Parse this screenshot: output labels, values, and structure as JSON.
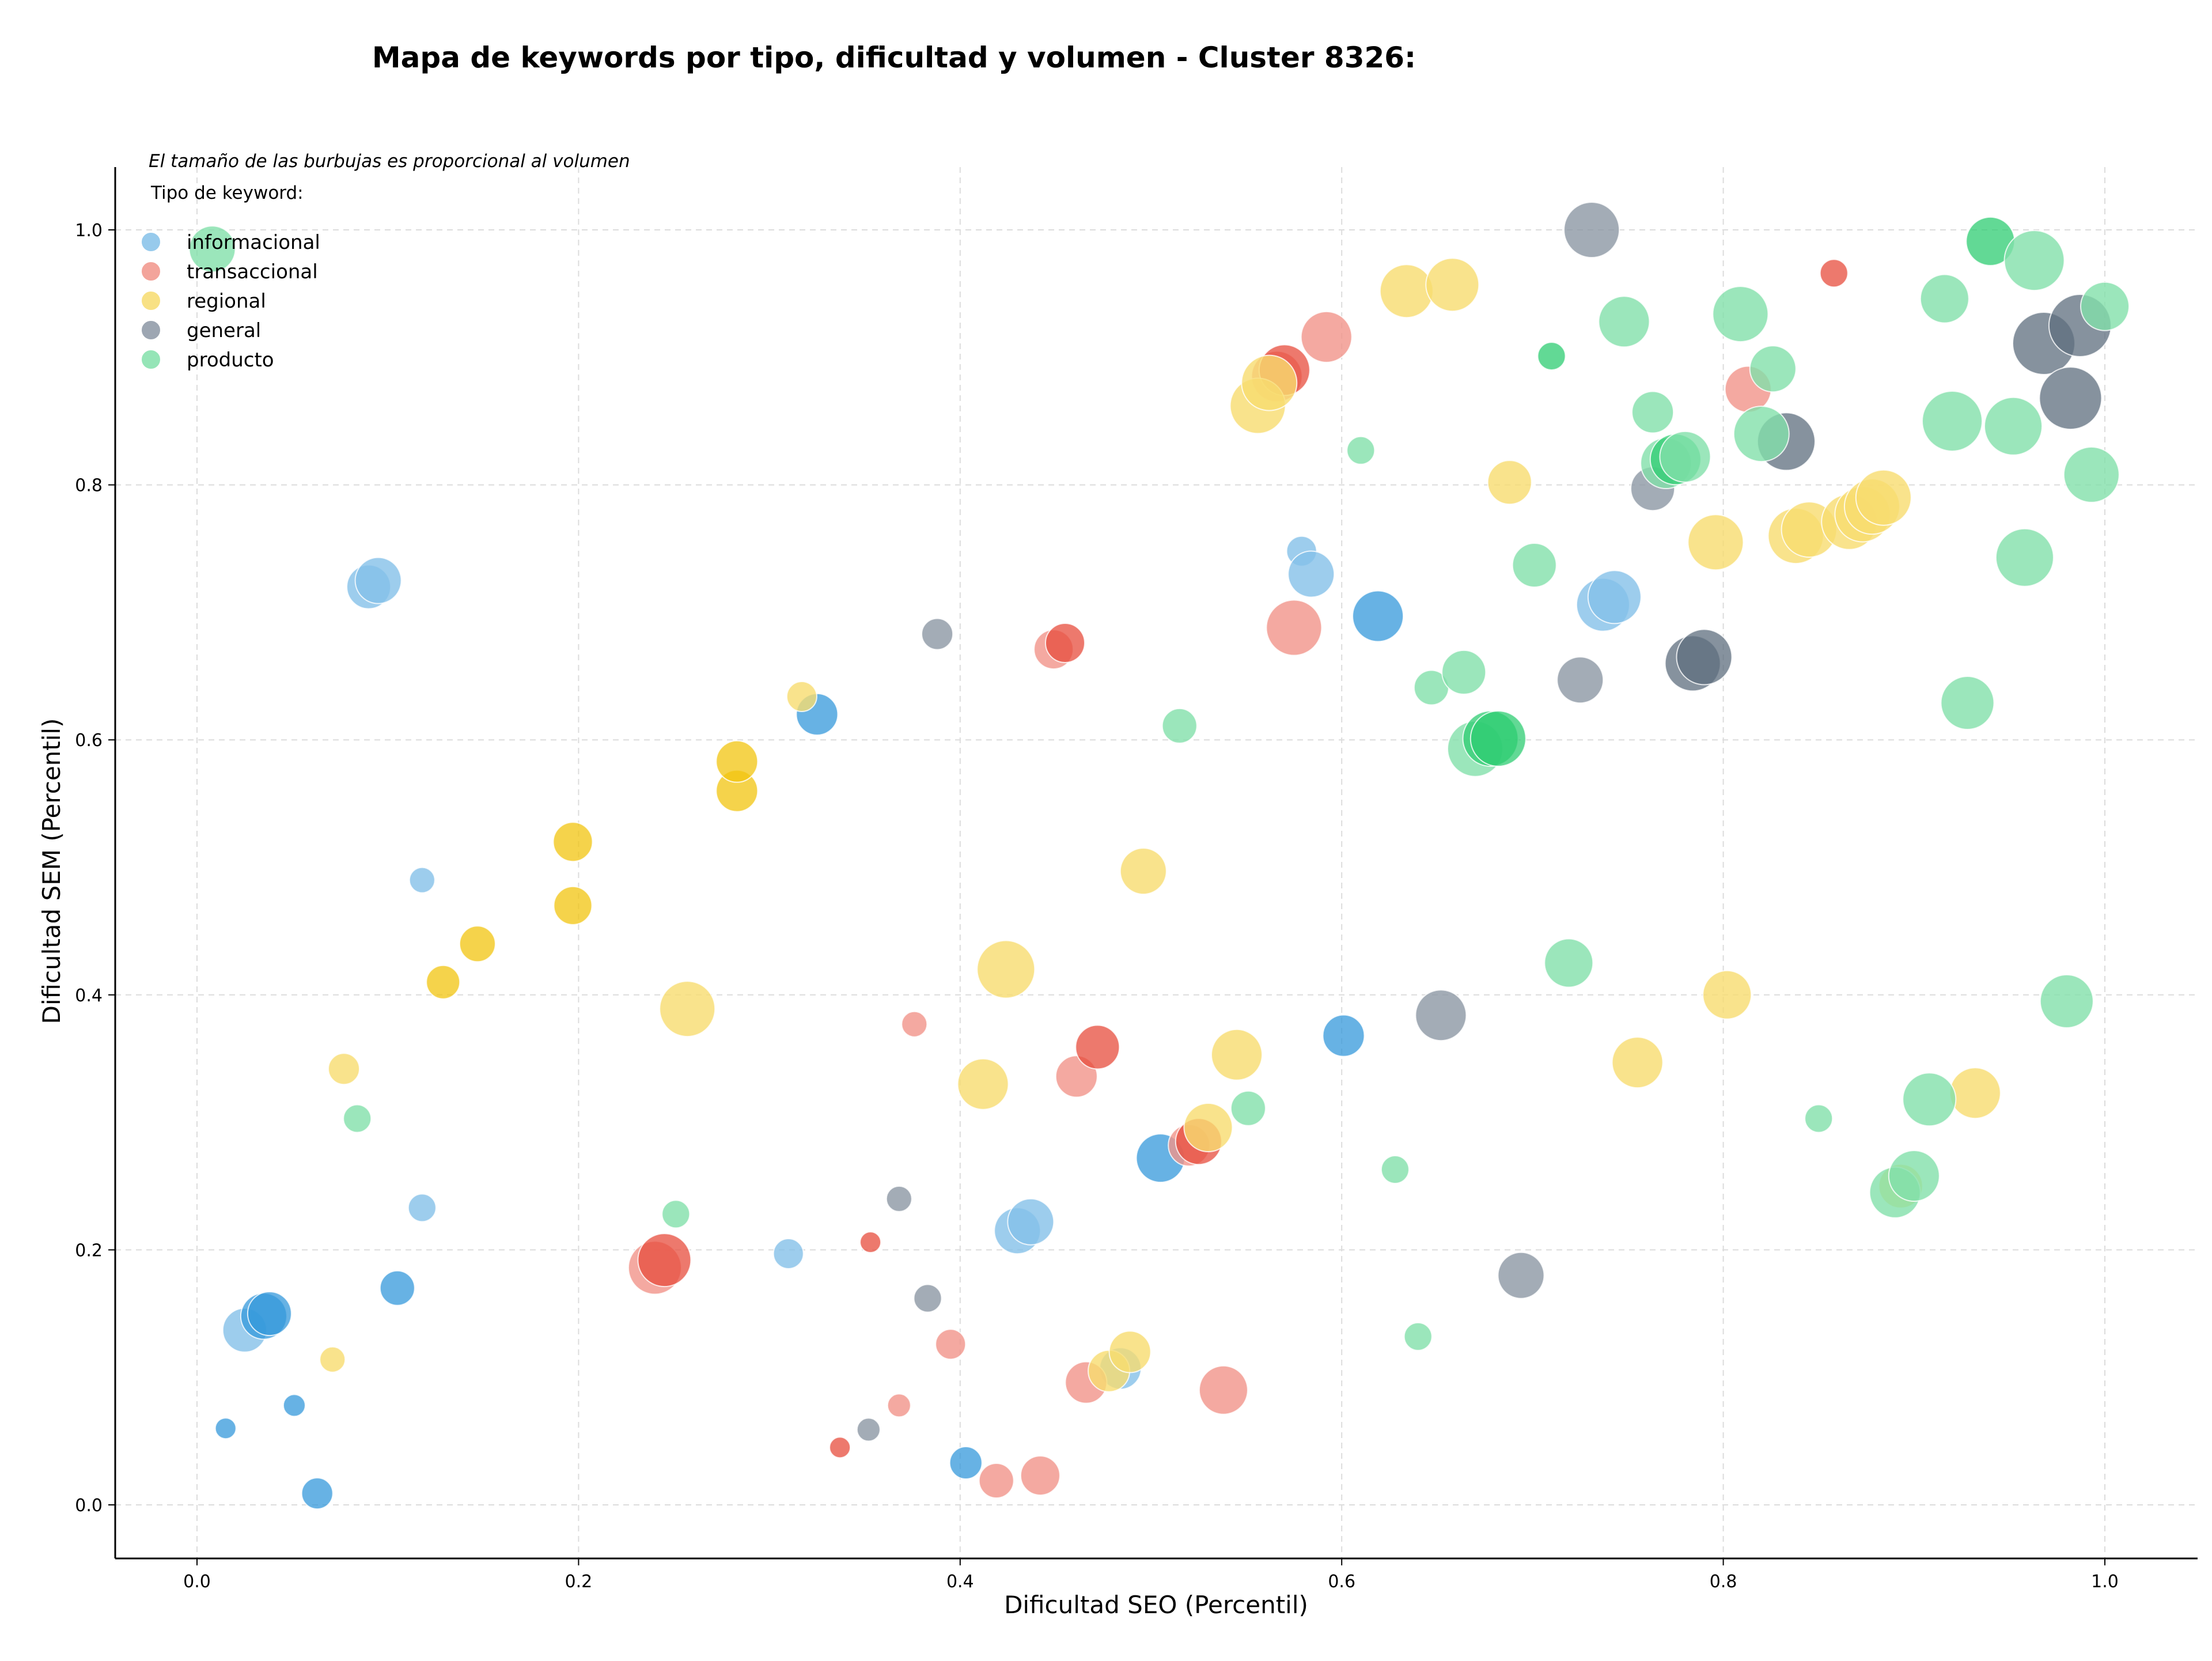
{
  "chart_data": {
    "type": "scatter",
    "title": "Mapa de keywords por tipo, dificultad y volumen - Cluster 8326:",
    "xlabel": "Dificultad SEO (Percentil)",
    "ylabel": "Dificultad SEM (Percentil)",
    "xlim": [
      -0.04,
      1.05
    ],
    "ylim": [
      -0.04,
      1.05
    ],
    "x_ticks": [
      "0.0",
      "0.2",
      "0.4",
      "0.6",
      "0.8",
      "1.0"
    ],
    "y_ticks": [
      "0.0",
      "0.2",
      "0.4",
      "0.6",
      "0.8",
      "1.0"
    ],
    "grid": true,
    "legend_placement": "top-left",
    "legend_title": "Tipo de keyword:",
    "annotation": "El tamaño de las burbujas es proporcional al volumen",
    "series": [
      {
        "name": "informacional",
        "color_light": "#85c1e9",
        "color_dark": "#3498db",
        "points": [
          [
            0.09,
            0.72,
            38,
            "l"
          ],
          [
            0.095,
            0.725,
            40,
            "l"
          ],
          [
            0.118,
            0.49,
            22,
            "l"
          ],
          [
            0.118,
            0.233,
            24,
            "l"
          ],
          [
            0.025,
            0.137,
            38,
            "l"
          ],
          [
            0.035,
            0.148,
            40,
            "d"
          ],
          [
            0.038,
            0.15,
            38,
            "d"
          ],
          [
            0.105,
            0.17,
            30,
            "d"
          ],
          [
            0.015,
            0.06,
            18,
            "d"
          ],
          [
            0.051,
            0.078,
            19,
            "d"
          ],
          [
            0.063,
            0.009,
            27,
            "d"
          ],
          [
            0.31,
            0.197,
            26,
            "l"
          ],
          [
            0.325,
            0.62,
            36,
            "d"
          ],
          [
            0.403,
            0.033,
            28,
            "d"
          ],
          [
            0.43,
            0.215,
            40,
            "l"
          ],
          [
            0.437,
            0.222,
            40,
            "l"
          ],
          [
            0.484,
            0.107,
            36,
            "l"
          ],
          [
            0.505,
            0.272,
            42,
            "d"
          ],
          [
            0.579,
            0.748,
            26,
            "l"
          ],
          [
            0.584,
            0.73,
            40,
            "l"
          ],
          [
            0.619,
            0.697,
            44,
            "d"
          ],
          [
            0.601,
            0.368,
            36,
            "d"
          ],
          [
            0.737,
            0.706,
            46,
            "l"
          ],
          [
            0.743,
            0.712,
            46,
            "l"
          ]
        ]
      },
      {
        "name": "transaccional",
        "color_light": "#f1948a",
        "color_dark": "#e74c3c",
        "points": [
          [
            0.24,
            0.186,
            46,
            "l"
          ],
          [
            0.245,
            0.192,
            46,
            "d"
          ],
          [
            0.376,
            0.377,
            22,
            "l"
          ],
          [
            0.353,
            0.206,
            18,
            "d"
          ],
          [
            0.337,
            0.045,
            18,
            "d"
          ],
          [
            0.368,
            0.078,
            20,
            "l"
          ],
          [
            0.395,
            0.126,
            26,
            "l"
          ],
          [
            0.419,
            0.019,
            30,
            "l"
          ],
          [
            0.442,
            0.023,
            34,
            "l"
          ],
          [
            0.449,
            0.671,
            34,
            "l"
          ],
          [
            0.455,
            0.676,
            34,
            "d"
          ],
          [
            0.461,
            0.336,
            36,
            "l"
          ],
          [
            0.472,
            0.359,
            38,
            "d"
          ],
          [
            0.466,
            0.096,
            36,
            "l"
          ],
          [
            0.52,
            0.282,
            36,
            "l"
          ],
          [
            0.525,
            0.285,
            40,
            "d"
          ],
          [
            0.538,
            0.09,
            42,
            "l"
          ],
          [
            0.566,
            0.885,
            44,
            "l"
          ],
          [
            0.57,
            0.89,
            44,
            "d"
          ],
          [
            0.592,
            0.916,
            44,
            "l"
          ],
          [
            0.575,
            0.688,
            48,
            "l"
          ],
          [
            0.813,
            0.875,
            40,
            "l"
          ],
          [
            0.858,
            0.966,
            24,
            "d"
          ]
        ]
      },
      {
        "name": "regional",
        "color_light": "#f7dc6f",
        "color_dark": "#f1c40f",
        "points": [
          [
            0.071,
            0.114,
            22,
            "l"
          ],
          [
            0.077,
            0.342,
            27,
            "l"
          ],
          [
            0.129,
            0.41,
            29,
            "d"
          ],
          [
            0.147,
            0.44,
            31,
            "d"
          ],
          [
            0.197,
            0.47,
            33,
            "d"
          ],
          [
            0.197,
            0.52,
            34,
            "d"
          ],
          [
            0.257,
            0.389,
            48,
            "l"
          ],
          [
            0.283,
            0.56,
            36,
            "d"
          ],
          [
            0.283,
            0.583,
            36,
            "d"
          ],
          [
            0.317,
            0.634,
            26,
            "l"
          ],
          [
            0.412,
            0.33,
            44,
            "l"
          ],
          [
            0.424,
            0.42,
            50,
            "l"
          ],
          [
            0.478,
            0.105,
            36,
            "l"
          ],
          [
            0.489,
            0.12,
            36,
            "l"
          ],
          [
            0.496,
            0.497,
            40,
            "l"
          ],
          [
            0.53,
            0.296,
            42,
            "l"
          ],
          [
            0.545,
            0.353,
            44,
            "l"
          ],
          [
            0.556,
            0.862,
            48,
            "l"
          ],
          [
            0.562,
            0.88,
            48,
            "l"
          ],
          [
            0.634,
            0.952,
            46,
            "l"
          ],
          [
            0.658,
            0.957,
            46,
            "l"
          ],
          [
            0.688,
            0.802,
            38,
            "l"
          ],
          [
            0.755,
            0.347,
            44,
            "l"
          ],
          [
            0.796,
            0.755,
            48,
            "l"
          ],
          [
            0.802,
            0.4,
            42,
            "l"
          ],
          [
            0.838,
            0.76,
            48,
            "l"
          ],
          [
            0.845,
            0.765,
            48,
            "l"
          ],
          [
            0.866,
            0.771,
            48,
            "l"
          ],
          [
            0.873,
            0.777,
            48,
            "l"
          ],
          [
            0.878,
            0.783,
            48,
            "l"
          ],
          [
            0.884,
            0.79,
            48,
            "l"
          ],
          [
            0.893,
            0.25,
            38,
            "l"
          ],
          [
            0.932,
            0.323,
            44,
            "l"
          ]
        ]
      },
      {
        "name": "general",
        "color_light": "#8c97a4",
        "color_dark": "#5d6d7e",
        "points": [
          [
            0.352,
            0.059,
            20,
            "l"
          ],
          [
            0.368,
            0.24,
            22,
            "l"
          ],
          [
            0.383,
            0.162,
            24,
            "l"
          ],
          [
            0.388,
            0.683,
            27,
            "l"
          ],
          [
            0.652,
            0.384,
            44,
            "l"
          ],
          [
            0.694,
            0.18,
            40,
            "l"
          ],
          [
            0.725,
            0.647,
            40,
            "l"
          ],
          [
            0.731,
            1.0,
            48,
            "l"
          ],
          [
            0.763,
            0.797,
            38,
            "l"
          ],
          [
            0.784,
            0.66,
            48,
            "d"
          ],
          [
            0.79,
            0.665,
            48,
            "d"
          ],
          [
            0.833,
            0.834,
            50,
            "d"
          ],
          [
            0.968,
            0.911,
            54,
            "d"
          ],
          [
            0.982,
            0.868,
            54,
            "d"
          ],
          [
            0.987,
            0.925,
            54,
            "d"
          ]
        ]
      },
      {
        "name": "producto",
        "color_light": "#82e0aa",
        "color_dark": "#2ecc71",
        "points": [
          [
            0.008,
            0.985,
            40,
            "l"
          ],
          [
            0.084,
            0.303,
            24,
            "l"
          ],
          [
            0.251,
            0.228,
            24,
            "l"
          ],
          [
            0.515,
            0.611,
            30,
            "l"
          ],
          [
            0.551,
            0.311,
            30,
            "l"
          ],
          [
            0.61,
            0.827,
            24,
            "l"
          ],
          [
            0.628,
            0.263,
            24,
            "l"
          ],
          [
            0.64,
            0.132,
            24,
            "l"
          ],
          [
            0.647,
            0.641,
            30,
            "l"
          ],
          [
            0.664,
            0.653,
            38,
            "l"
          ],
          [
            0.67,
            0.593,
            48,
            "l"
          ],
          [
            0.678,
            0.601,
            48,
            "d"
          ],
          [
            0.682,
            0.601,
            48,
            "d"
          ],
          [
            0.701,
            0.737,
            38,
            "l"
          ],
          [
            0.71,
            0.901,
            24,
            "d"
          ],
          [
            0.719,
            0.425,
            42,
            "l"
          ],
          [
            0.748,
            0.928,
            44,
            "l"
          ],
          [
            0.763,
            0.857,
            36,
            "l"
          ],
          [
            0.77,
            0.817,
            44,
            "l"
          ],
          [
            0.775,
            0.82,
            44,
            "d"
          ],
          [
            0.78,
            0.822,
            44,
            "l"
          ],
          [
            0.809,
            0.934,
            48,
            "l"
          ],
          [
            0.82,
            0.84,
            48,
            "l"
          ],
          [
            0.826,
            0.891,
            40,
            "l"
          ],
          [
            0.85,
            0.303,
            24,
            "l"
          ],
          [
            0.89,
            0.245,
            44,
            "l"
          ],
          [
            0.9,
            0.258,
            44,
            "l"
          ],
          [
            0.908,
            0.318,
            46,
            "l"
          ],
          [
            0.916,
            0.946,
            42,
            "l"
          ],
          [
            0.92,
            0.85,
            52,
            "l"
          ],
          [
            0.928,
            0.629,
            46,
            "l"
          ],
          [
            0.94,
            0.991,
            42,
            "d"
          ],
          [
            0.952,
            0.846,
            50,
            "l"
          ],
          [
            0.958,
            0.743,
            50,
            "l"
          ],
          [
            0.963,
            0.976,
            52,
            "l"
          ],
          [
            0.98,
            0.395,
            46,
            "l"
          ],
          [
            0.993,
            0.808,
            48,
            "l"
          ],
          [
            1.0,
            0.94,
            42,
            "l"
          ]
        ]
      }
    ]
  }
}
